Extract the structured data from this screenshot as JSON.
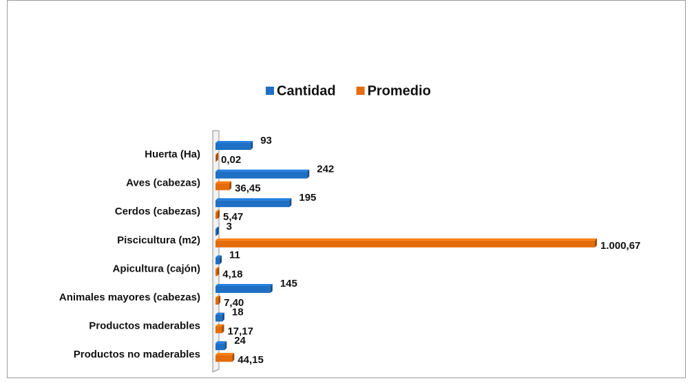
{
  "chart_data": {
    "type": "bar",
    "orientation": "horizontal",
    "categories": [
      "Huerta (Ha)",
      "Aves (cabezas)",
      "Cerdos (cabezas)",
      "Piscicultura (m2)",
      "Apicultura (cajón)",
      "Animales mayores (cabezas)",
      "Productos maderables",
      "Productos no maderables"
    ],
    "series": [
      {
        "name": "Cantidad",
        "color": "#1f6fc4",
        "values": [
          93,
          242,
          195,
          3,
          11,
          145,
          18,
          24
        ]
      },
      {
        "name": "Promedio",
        "color": "#e46c0a",
        "values": [
          0.02,
          36.45,
          5.47,
          1000.67,
          4.18,
          7.4,
          17.17,
          44.15
        ],
        "value_labels": [
          "0,02",
          "36,45",
          "5,47",
          "1.000,67",
          "4,18",
          "7,40",
          "17,17",
          "44,15"
        ]
      }
    ],
    "legend": "top"
  }
}
